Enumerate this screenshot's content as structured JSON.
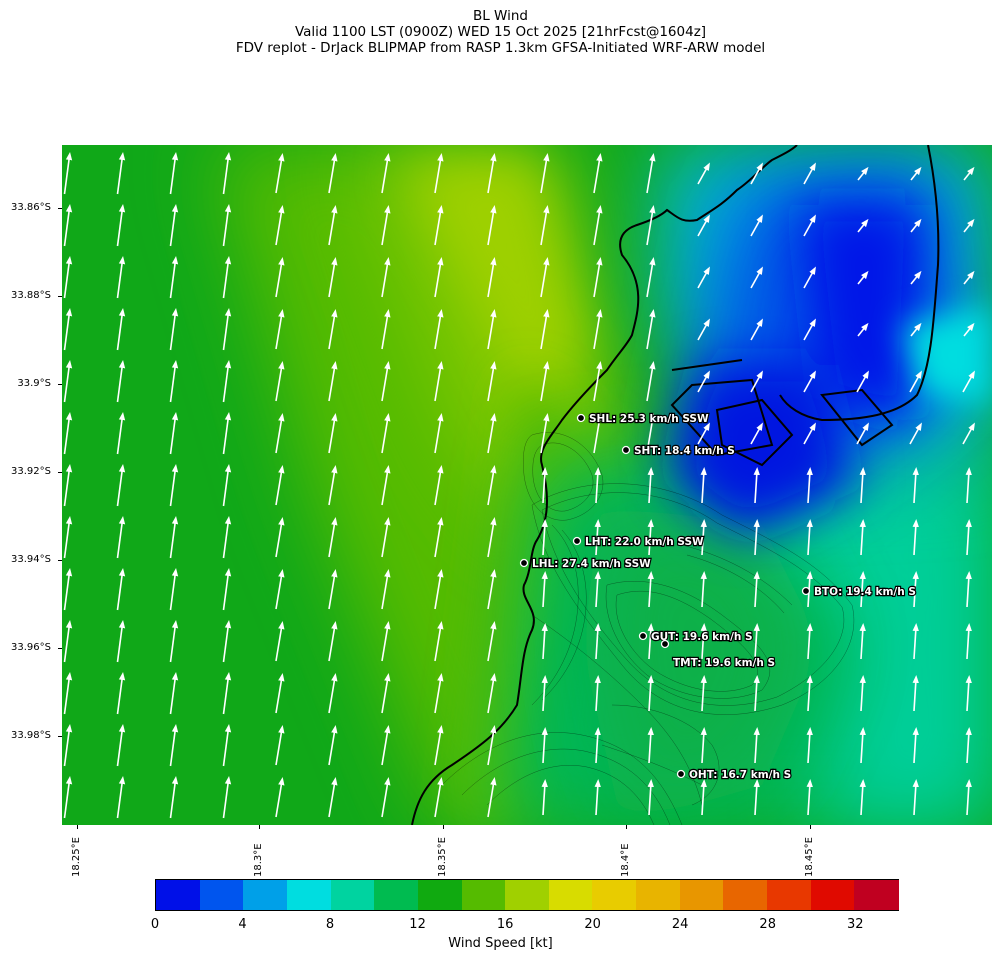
{
  "title": {
    "line1": "BL Wind",
    "line2": "Valid 1100 LST (0900Z) WED 15 Oct 2025 [21hrFcst@1604z]",
    "line3": "FDV replot - DrJack BLIPMAP from RASP 1.3km GFSA-Initiated WRF-ARW model"
  },
  "lat_labels": [
    "33.86°S",
    "33.88°S",
    "33.9°S",
    "33.92°S",
    "33.94°S",
    "33.96°S",
    "33.98°S"
  ],
  "lon_labels": [
    "18.25°E",
    "18.3°E",
    "18.35°E",
    "18.4°E",
    "18.45°E"
  ],
  "stations": [
    {
      "id": "SHL",
      "label": "SHL: 25.3 km/h SSW"
    },
    {
      "id": "SHT",
      "label": "SHT: 18.4 km/h S"
    },
    {
      "id": "LHT",
      "label": "LHT: 22.0 km/h SSW"
    },
    {
      "id": "LHL",
      "label": "LHL: 27.4 km/h SSW"
    },
    {
      "id": "BTO",
      "label": "BTO: 19.4 km/h S"
    },
    {
      "id": "GUT",
      "label": "GUT: 19.6 km/h S"
    },
    {
      "id": "TMT",
      "label": "TMT: 19.6 km/h S"
    },
    {
      "id": "OHT",
      "label": "OHT: 16.7 km/h S"
    }
  ],
  "colorbar": {
    "title": "Wind Speed [kt]",
    "tick_labels": [
      "0",
      "4",
      "8",
      "12",
      "16",
      "20",
      "24",
      "28",
      "32"
    ],
    "colors": [
      "#0010e8",
      "#0055ee",
      "#00a0e8",
      "#00dde0",
      "#00d3a0",
      "#00bb50",
      "#10aa10",
      "#55bb00",
      "#a0d000",
      "#d8dc00",
      "#e8cc00",
      "#e8b400",
      "#e89600",
      "#e86600",
      "#e83800",
      "#e00a00",
      "#c00020"
    ]
  }
}
